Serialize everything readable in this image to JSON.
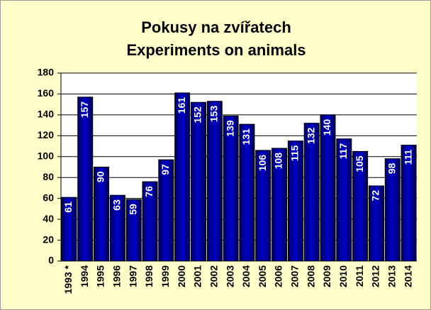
{
  "chart_data": {
    "type": "bar",
    "title": [
      "Pokusy na zvířatech",
      "Experiments on animals"
    ],
    "categories": [
      "1993 *",
      "1994",
      "1995",
      "1996",
      "1997",
      "1998",
      "1999",
      "2000",
      "2001",
      "2002",
      "2003",
      "2004",
      "2005",
      "2006",
      "2007",
      "2008",
      "2009",
      "2010",
      "2011",
      "2012",
      "2013",
      "2014"
    ],
    "values": [
      61,
      157,
      90,
      63,
      59,
      76,
      97,
      161,
      152,
      153,
      139,
      131,
      106,
      108,
      115,
      132,
      140,
      117,
      105,
      72,
      98,
      111
    ],
    "color": "#0000cc",
    "ylim": [
      0,
      180
    ],
    "yticks": [
      0,
      20,
      40,
      60,
      80,
      100,
      120,
      140,
      160,
      180
    ],
    "grid": true
  }
}
